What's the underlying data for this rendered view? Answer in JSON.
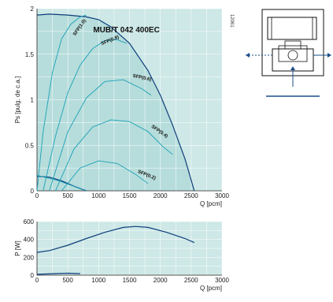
{
  "chart_data": [
    {
      "type": "line",
      "title": "MUB/T 042 400EC",
      "xlabel": "Q [pcm]",
      "ylabel": "Ps [pulg. de c.a.]",
      "xlim": [
        0,
        3000
      ],
      "ylim": [
        0,
        2
      ],
      "xticks": [
        "0",
        "500",
        "1000",
        "1500",
        "2000",
        "2500",
        "3000"
      ],
      "yticks": [
        "0",
        "0.5",
        "1",
        "1.5",
        "2"
      ],
      "grid": true,
      "colors": {
        "fan_curve": "#0d3d7a",
        "sfp_curve": "#1aa0b8",
        "fill": "#cde8e6",
        "region": "#b4dcd9"
      },
      "series": [
        {
          "kind": "fan",
          "x": [
            0,
            200,
            500,
            800,
            1000,
            1200,
            1500,
            1800,
            2000,
            2200,
            2400,
            2550
          ],
          "y": [
            1.93,
            1.94,
            1.93,
            1.91,
            1.88,
            1.8,
            1.62,
            1.32,
            1.05,
            0.72,
            0.35,
            0.0
          ]
        },
        {
          "kind": "fan",
          "x": [
            0,
            200,
            400,
            600,
            800
          ],
          "y": [
            0.16,
            0.15,
            0.11,
            0.05,
            0.0
          ]
        },
        {
          "name": "SFP(1.0)",
          "kind": "sfp",
          "x": [
            0,
            100,
            250,
            400,
            550,
            700,
            800
          ],
          "y": [
            0.0,
            0.65,
            1.3,
            1.67,
            1.83,
            1.91,
            1.93
          ]
        },
        {
          "name": "SFP(0.8)",
          "kind": "sfp",
          "x": [
            100,
            300,
            500,
            700,
            900,
            1100,
            1300,
            1450
          ],
          "y": [
            0.0,
            0.6,
            1.08,
            1.38,
            1.56,
            1.65,
            1.66,
            1.62
          ]
        },
        {
          "name": "SFP(0.6)",
          "kind": "sfp",
          "x": [
            200,
            500,
            800,
            1100,
            1400,
            1700,
            1850
          ],
          "y": [
            0.0,
            0.65,
            1.02,
            1.2,
            1.22,
            1.12,
            1.05
          ]
        },
        {
          "name": "SFP(0.4)",
          "kind": "sfp",
          "x": [
            300,
            600,
            900,
            1200,
            1500,
            1800,
            2050,
            2200
          ],
          "y": [
            0.0,
            0.46,
            0.7,
            0.78,
            0.76,
            0.65,
            0.48,
            0.4
          ]
        },
        {
          "name": "SFP(0.2)",
          "kind": "sfp",
          "x": [
            400,
            700,
            1000,
            1300,
            1600,
            1800
          ],
          "y": [
            0.0,
            0.25,
            0.33,
            0.3,
            0.18,
            0.08
          ]
        },
        {
          "kind": "sfp",
          "x": [
            0,
            300,
            600,
            800
          ],
          "y": [
            0.17,
            0.12,
            0.05,
            0.0
          ]
        }
      ],
      "annotations": [
        "12061"
      ]
    },
    {
      "type": "line",
      "xlabel": "Q [pcm]",
      "ylabel": "P [W]",
      "xlim": [
        0,
        3000
      ],
      "ylim": [
        0,
        600
      ],
      "xticks": [
        "0",
        "500",
        "1000",
        "1500",
        "2000",
        "2500",
        "3000"
      ],
      "yticks": [
        "0",
        "200",
        "400",
        "600"
      ],
      "grid": true,
      "series": [
        {
          "kind": "power",
          "x": [
            0,
            200,
            500,
            800,
            1100,
            1400,
            1600,
            1800,
            2100,
            2400,
            2550
          ],
          "y": [
            255,
            275,
            335,
            410,
            480,
            535,
            545,
            535,
            480,
            410,
            365
          ]
        },
        {
          "kind": "power",
          "x": [
            0,
            300,
            500,
            700
          ],
          "y": [
            10,
            18,
            22,
            18
          ]
        }
      ]
    }
  ]
}
